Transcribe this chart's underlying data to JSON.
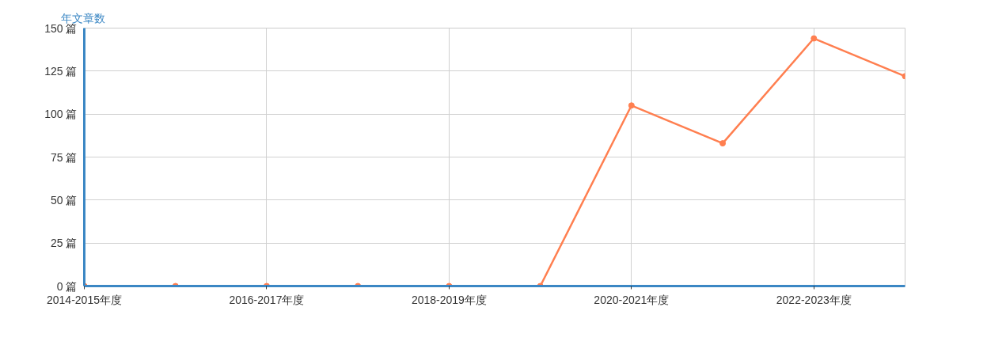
{
  "chart_data": {
    "type": "line",
    "ylabel": "年文章数",
    "categories": [
      "2014-2015年度",
      null,
      "2016-2017年度",
      null,
      "2018-2019年度",
      null,
      "2020-2021年度",
      null,
      "2022-2023年度",
      null
    ],
    "series": [
      {
        "color": "#ff7f50",
        "values": [
          0,
          0,
          0,
          0,
          0,
          0,
          105,
          83,
          144,
          122
        ]
      }
    ],
    "ylim": [
      0,
      150
    ],
    "yticks": [
      {
        "value": 0,
        "label": "0 篇"
      },
      {
        "value": 25,
        "label": "25 篇"
      },
      {
        "value": 50,
        "label": "50 篇"
      },
      {
        "value": 75,
        "label": "75 篇"
      },
      {
        "value": 100,
        "label": "100 篇"
      },
      {
        "value": 125,
        "label": "125 篇"
      },
      {
        "value": 150,
        "label": "150 篇"
      }
    ],
    "grid": true,
    "marker": "circle",
    "line_style": "solid"
  }
}
